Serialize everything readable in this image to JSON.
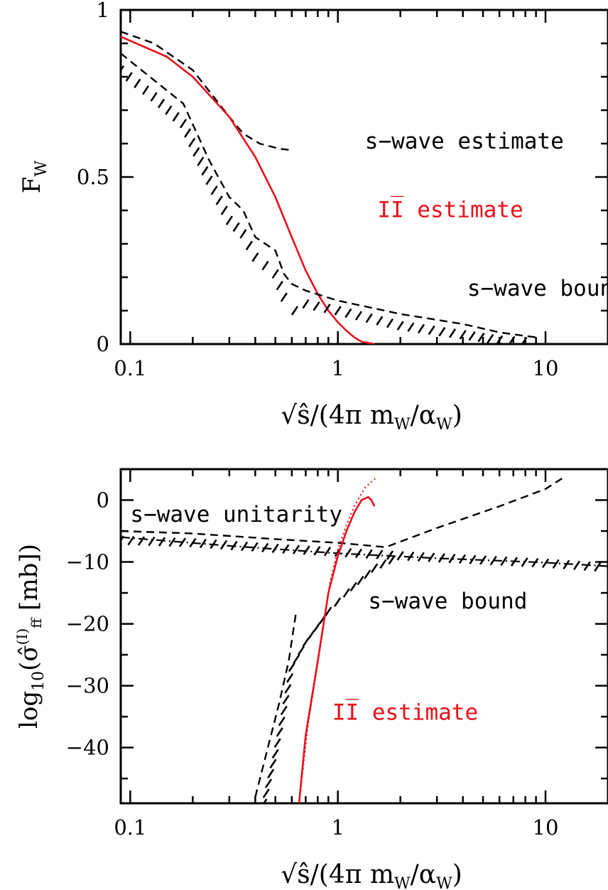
{
  "chart_data": [
    {
      "type": "line",
      "id": "top",
      "xscale": "log",
      "xlim": [
        0.09,
        20
      ],
      "ylim": [
        0,
        1
      ],
      "xticks": [
        {
          "v": 0.1,
          "label": "0.1"
        },
        {
          "v": 1,
          "label": "1"
        },
        {
          "v": 10,
          "label": "10"
        }
      ],
      "yticks": [
        {
          "v": 0,
          "label": "0"
        },
        {
          "v": 0.5,
          "label": "0.5"
        },
        {
          "v": 1,
          "label": "1"
        }
      ],
      "yminor": [
        0.1,
        0.2,
        0.3,
        0.4,
        0.6,
        0.7,
        0.8,
        0.9
      ],
      "ylabel": {
        "base": "F",
        "sub": "W"
      },
      "xlabel": {
        "text": "√ŝ/(4π m",
        "sub1": "W",
        "mid": "/α",
        "sub2": "W",
        "end": ")"
      },
      "series": [
        {
          "style": "dash",
          "points": [
            [
              0.09,
              0.935
            ],
            [
              0.13,
              0.9
            ],
            [
              0.2,
              0.82
            ],
            [
              0.3,
              0.68
            ],
            [
              0.35,
              0.63
            ],
            [
              0.42,
              0.6
            ],
            [
              0.52,
              0.585
            ],
            [
              0.6,
              0.58
            ]
          ]
        },
        {
          "style": "solid-red",
          "points": [
            [
              0.09,
              0.92
            ],
            [
              0.15,
              0.86
            ],
            [
              0.2,
              0.8
            ],
            [
              0.3,
              0.68
            ],
            [
              0.4,
              0.56
            ],
            [
              0.5,
              0.44
            ],
            [
              0.6,
              0.32
            ],
            [
              0.7,
              0.22
            ],
            [
              0.8,
              0.15
            ],
            [
              0.9,
              0.1
            ],
            [
              1.0,
              0.065
            ],
            [
              1.1,
              0.04
            ],
            [
              1.2,
              0.02
            ],
            [
              1.3,
              0.007
            ],
            [
              1.5,
              0.0
            ]
          ]
        },
        {
          "style": "dash",
          "points": [
            [
              0.09,
              0.87
            ],
            [
              0.13,
              0.79
            ],
            [
              0.18,
              0.72
            ],
            [
              0.24,
              0.55
            ],
            [
              0.3,
              0.44
            ],
            [
              0.35,
              0.4
            ],
            [
              0.4,
              0.32
            ],
            [
              0.5,
              0.28
            ],
            [
              0.55,
              0.21
            ],
            [
              0.6,
              0.18
            ],
            [
              0.7,
              0.16
            ],
            [
              1.0,
              0.13
            ],
            [
              2.0,
              0.09
            ],
            [
              4.0,
              0.06
            ],
            [
              6.0,
              0.035
            ],
            [
              9.0,
              0.02
            ]
          ]
        },
        {
          "style": "hatch",
          "points": [
            [
              0.09,
              0.82
            ],
            [
              0.13,
              0.74
            ],
            [
              0.18,
              0.66
            ],
            [
              0.24,
              0.49
            ],
            [
              0.3,
              0.37
            ],
            [
              0.35,
              0.33
            ],
            [
              0.4,
              0.26
            ],
            [
              0.5,
              0.21
            ],
            [
              0.55,
              0.14
            ],
            [
              0.62,
              0.1
            ],
            [
              0.7,
              0.12
            ],
            [
              1.0,
              0.1
            ],
            [
              2.0,
              0.055
            ],
            [
              4.0,
              0.028
            ],
            [
              6.0,
              0.012
            ],
            [
              9.0,
              0.005
            ]
          ]
        }
      ],
      "annotations": [
        {
          "text": "s−wave estimate",
          "x": 1.35,
          "y": 0.585,
          "color": "black"
        },
        {
          "text": "II̅ estimate",
          "x": 1.55,
          "y": 0.38,
          "color": "red"
        },
        {
          "text": "s−wave bound",
          "x": 4.2,
          "y": 0.145,
          "color": "black"
        }
      ]
    },
    {
      "type": "line",
      "id": "bottom",
      "xscale": "log",
      "xlim": [
        0.09,
        20
      ],
      "ylim": [
        -49,
        5
      ],
      "xticks": [
        {
          "v": 0.1,
          "label": "0.1"
        },
        {
          "v": 1,
          "label": "1"
        },
        {
          "v": 10,
          "label": "10"
        }
      ],
      "yticks": [
        {
          "v": 0,
          "label": "0"
        },
        {
          "v": -10,
          "label": "−10"
        },
        {
          "v": -20,
          "label": "−20"
        },
        {
          "v": -30,
          "label": "−30"
        },
        {
          "v": -40,
          "label": "−40"
        }
      ],
      "yminor": [
        -5,
        -15,
        -25,
        -35,
        -45
      ],
      "ylabel": {
        "base": "log",
        "sub": "10",
        "mid": "(σ̂",
        "sup": "(I)",
        "sub2": "ff",
        "end": " [mb])"
      },
      "xlabel": {
        "text": "√ŝ/(4π m",
        "sub1": "W",
        "mid": "/α",
        "sub2": "W",
        "end": ")"
      },
      "series": [
        {
          "style": "dashdot",
          "points": [
            [
              0.09,
              -6.0
            ],
            [
              0.3,
              -7.4
            ],
            [
              1.0,
              -8.6
            ],
            [
              3.0,
              -9.4
            ],
            [
              10.0,
              -10.1
            ],
            [
              20.0,
              -10.7
            ]
          ]
        },
        {
          "style": "dash",
          "points": [
            [
              0.09,
              -5.0
            ],
            [
              0.2,
              -5.4
            ],
            [
              0.5,
              -6.3
            ],
            [
              1.0,
              -6.9
            ],
            [
              1.7,
              -7.6
            ],
            [
              3.0,
              -4.5
            ],
            [
              6.0,
              -1.0
            ],
            [
              10.0,
              1.8
            ],
            [
              12.0,
              3.5
            ]
          ]
        },
        {
          "style": "hatch",
          "points": [
            [
              0.09,
              -6.5
            ],
            [
              0.2,
              -6.9
            ],
            [
              0.5,
              -7.8
            ],
            [
              1.0,
              -8.4
            ],
            [
              2.0,
              -9.0
            ],
            [
              5.0,
              -9.7
            ],
            [
              10.0,
              -10.2
            ],
            [
              20.0,
              -10.9
            ]
          ]
        },
        {
          "style": "dash",
          "points": [
            [
              0.4,
              -48.0
            ],
            [
              0.46,
              -40.0
            ],
            [
              0.52,
              -33.0
            ],
            [
              0.58,
              -26.0
            ],
            [
              0.63,
              -18.0
            ]
          ]
        },
        {
          "style": "hatch",
          "points": [
            [
              0.44,
              -49.0
            ],
            [
              0.5,
              -41.0
            ],
            [
              0.55,
              -34.0
            ],
            [
              0.6,
              -27.0
            ],
            [
              0.7,
              -23.0
            ],
            [
              0.9,
              -18.0
            ],
            [
              1.1,
              -15.0
            ],
            [
              1.5,
              -11.0
            ],
            [
              2.0,
              -9.0
            ]
          ]
        },
        {
          "style": "solid-red",
          "points": [
            [
              0.65,
              -49.0
            ],
            [
              0.7,
              -38.0
            ],
            [
              0.8,
              -26.0
            ],
            [
              0.9,
              -15.0
            ],
            [
              1.0,
              -9.0
            ],
            [
              1.1,
              -5.0
            ],
            [
              1.2,
              -2.0
            ],
            [
              1.3,
              0.0
            ],
            [
              1.4,
              0.5
            ],
            [
              1.45,
              0.0
            ],
            [
              1.5,
              -1.0
            ]
          ]
        },
        {
          "style": "dotted-red",
          "points": [
            [
              0.65,
              -49.0
            ],
            [
              0.72,
              -36.0
            ],
            [
              0.82,
              -24.0
            ],
            [
              0.92,
              -13.0
            ],
            [
              1.0,
              -8.0
            ],
            [
              1.1,
              -4.0
            ],
            [
              1.2,
              -1.0
            ],
            [
              1.35,
              2.0
            ],
            [
              1.55,
              3.8
            ]
          ]
        }
      ],
      "annotations": [
        {
          "text": "s−wave unitarity",
          "x": 0.1,
          "y": -3.5,
          "color": "black"
        },
        {
          "text": "s−wave bound",
          "x": 1.4,
          "y": -17.5,
          "color": "black"
        },
        {
          "text": "II̅ estimate",
          "x": 0.94,
          "y": -35.5,
          "color": "red"
        }
      ]
    }
  ]
}
